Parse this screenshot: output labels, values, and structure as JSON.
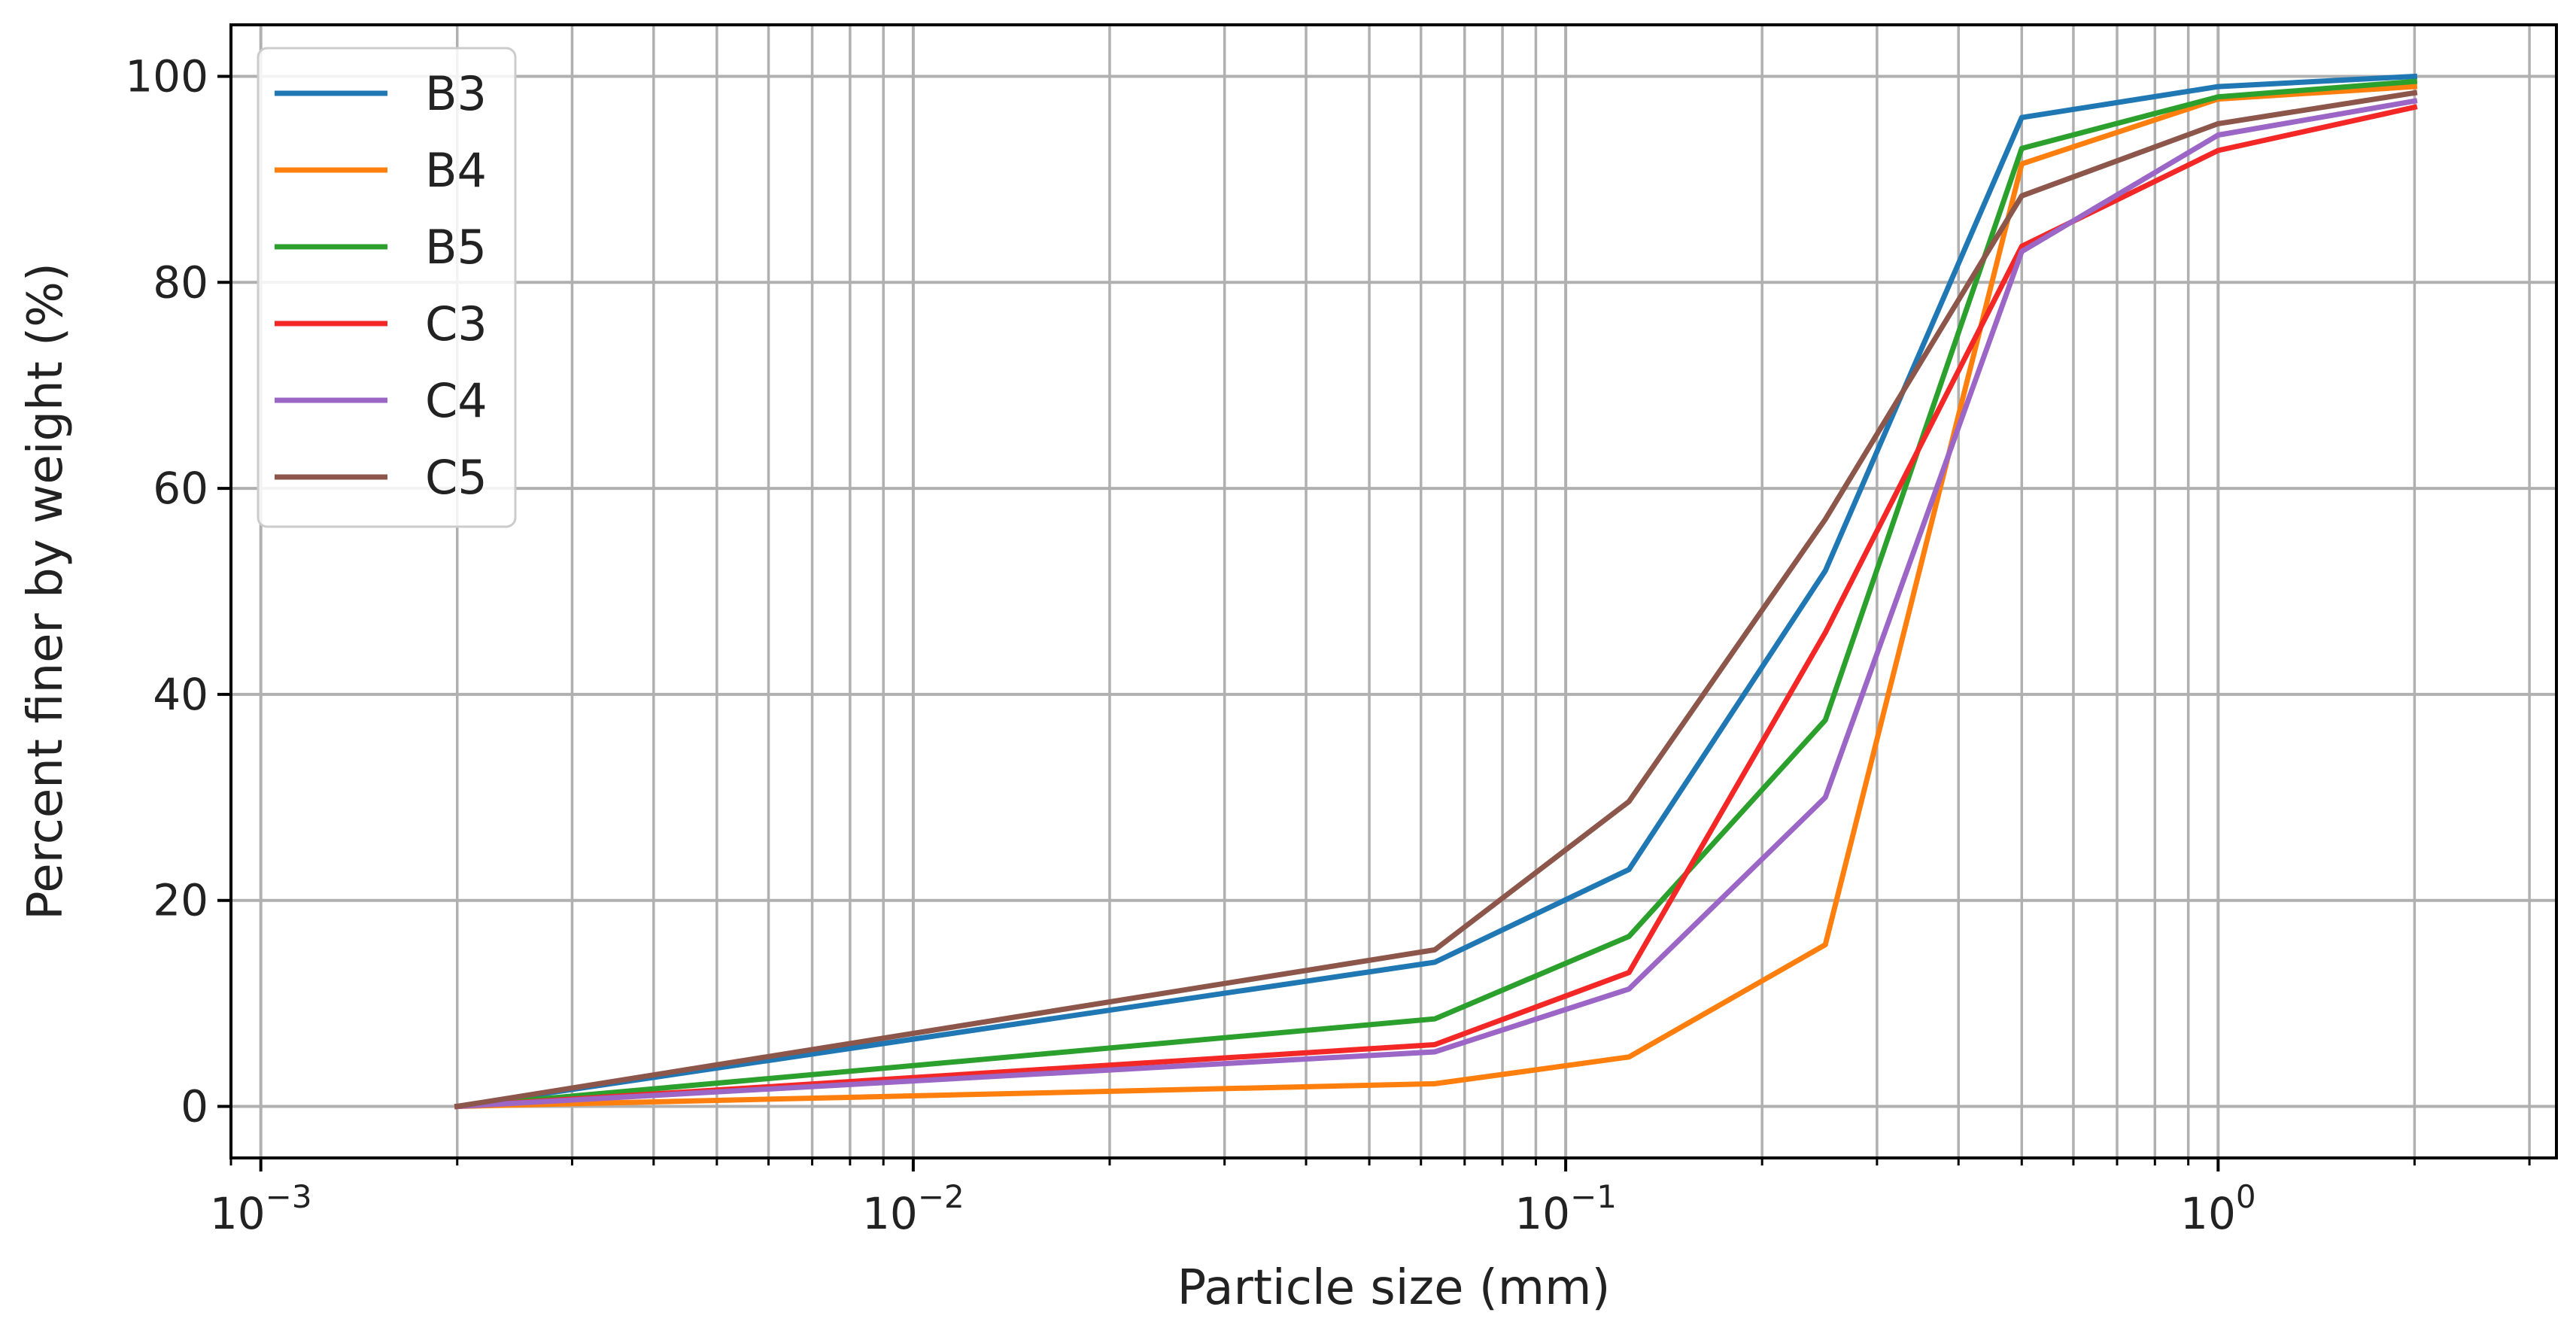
{
  "chart_data": {
    "type": "line",
    "xscale": "log",
    "xlabel": "Particle size (mm)",
    "ylabel": "Percent finer by weight (%)",
    "xlim": [
      0.0009,
      3.3
    ],
    "ylim": [
      -5,
      105
    ],
    "grid": true,
    "xticks": [
      {
        "value": 0.001,
        "base": "10",
        "exp": "−3"
      },
      {
        "value": 0.01,
        "base": "10",
        "exp": "−2"
      },
      {
        "value": 0.1,
        "base": "10",
        "exp": "−1"
      },
      {
        "value": 1,
        "base": "10",
        "exp": "0"
      }
    ],
    "yticks": [
      {
        "value": 0,
        "label": "0"
      },
      {
        "value": 20,
        "label": "20"
      },
      {
        "value": 40,
        "label": "40"
      },
      {
        "value": 60,
        "label": "60"
      },
      {
        "value": 80,
        "label": "80"
      },
      {
        "value": 100,
        "label": "100"
      }
    ],
    "x": [
      0.002,
      0.063,
      0.125,
      0.25,
      0.5,
      1.0,
      2.0
    ],
    "legend_position": "top-left",
    "series": [
      {
        "name": "B3",
        "color": "#1f77b4",
        "values": [
          0,
          14,
          23,
          52,
          96,
          99,
          100
        ]
      },
      {
        "name": "B4",
        "color": "#ff7f0e",
        "values": [
          0,
          2.2,
          4.8,
          15.7,
          91.5,
          97.8,
          99
        ]
      },
      {
        "name": "B5",
        "color": "#2ca02c",
        "values": [
          0,
          8.5,
          16.5,
          37.5,
          93,
          98,
          99.5
        ]
      },
      {
        "name": "C3",
        "color": "#f42727",
        "values": [
          0,
          6,
          13,
          46,
          83.5,
          92.8,
          97
        ]
      },
      {
        "name": "C4",
        "color": "#9b66c6",
        "values": [
          0,
          5.3,
          11.4,
          30,
          83,
          94.3,
          97.6
        ]
      },
      {
        "name": "C5",
        "color": "#8c564b",
        "values": [
          0,
          15.2,
          29.6,
          57,
          88.4,
          95.4,
          98.4
        ]
      }
    ]
  }
}
